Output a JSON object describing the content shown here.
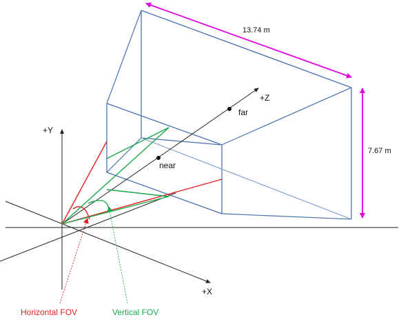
{
  "diagram": {
    "width_label": "13.74 m",
    "height_label": "7.67 m",
    "axis_x": "+X",
    "axis_y": "+Y",
    "axis_z": "+Z",
    "near_label": "near",
    "far_label": "far",
    "horizontal_fov_label": "Horizontal FOV",
    "vertical_fov_label": "Vertical FOV"
  },
  "colors": {
    "frustum": "#4a6fb0",
    "frustum_light": "#7f9fcf",
    "horizontal_fov": "#e02020",
    "vertical_fov": "#18a84a",
    "dimension": "#e000e0",
    "axis": "#222222"
  }
}
